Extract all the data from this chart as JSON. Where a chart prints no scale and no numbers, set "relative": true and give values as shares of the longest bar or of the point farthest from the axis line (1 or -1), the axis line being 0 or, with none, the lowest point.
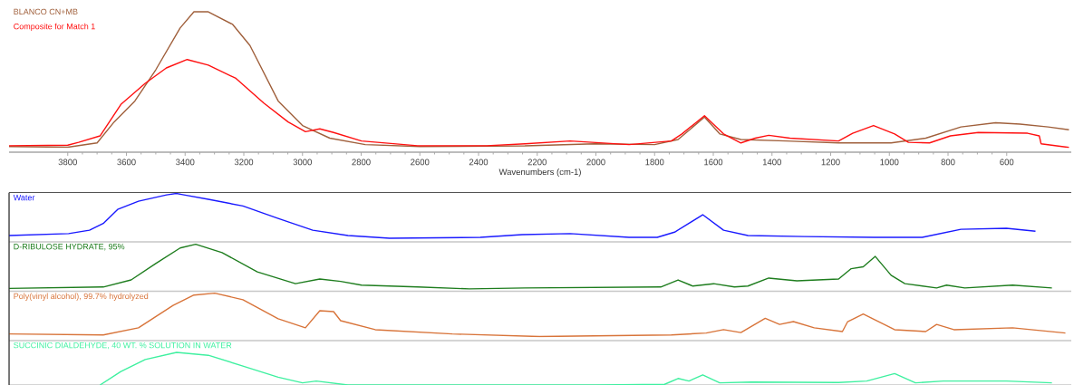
{
  "chart_data": [
    {
      "type": "line",
      "relative": true,
      "xlabel": "Wavenumbers (cm-1)",
      "xlim": [
        4000,
        380
      ],
      "xticks": [
        3800,
        3600,
        3400,
        3200,
        3000,
        2800,
        2600,
        2400,
        2200,
        2000,
        1800,
        1600,
        1400,
        1200,
        1000,
        800,
        600
      ],
      "tick_labels": "x",
      "legend": "top left",
      "series": [
        {
          "name": "BLANCO CN+MB",
          "color": "#a0603c",
          "x": [
            4000,
            3800,
            3700,
            3642,
            3571,
            3500,
            3417,
            3370,
            3321,
            3238,
            3179,
            3083,
            3000,
            2907,
            2786,
            2600,
            2242,
            2004,
            1800,
            1720,
            1630,
            1578,
            1506,
            1352,
            1173,
            994,
            876,
            756,
            638,
            555,
            459,
            388
          ],
          "values": [
            0.04,
            0.035,
            0.066,
            0.215,
            0.365,
            0.587,
            0.885,
            1.0,
            1.0,
            0.91,
            0.76,
            0.365,
            0.19,
            0.1,
            0.054,
            0.04,
            0.045,
            0.06,
            0.054,
            0.09,
            0.25,
            0.13,
            0.09,
            0.08,
            0.066,
            0.066,
            0.1,
            0.18,
            0.21,
            0.2,
            0.18,
            0.16
          ]
        },
        {
          "name": "Composite for Match 1",
          "color": "#ff1010",
          "x": [
            4000,
            3800,
            3763,
            3690,
            3619,
            3536,
            3464,
            3393,
            3321,
            3227,
            3132,
            3049,
            2990,
            2941,
            2894,
            2799,
            2608,
            2372,
            2242,
            2088,
            1887,
            1743,
            1707,
            1630,
            1565,
            1506,
            1457,
            1411,
            1339,
            1173,
            1125,
            1054,
            982,
            935,
            863,
            792,
            697,
            529,
            489,
            483,
            388
          ],
          "values": [
            0.046,
            0.05,
            0.07,
            0.116,
            0.34,
            0.49,
            0.6,
            0.66,
            0.62,
            0.526,
            0.35,
            0.215,
            0.146,
            0.166,
            0.14,
            0.08,
            0.046,
            0.046,
            0.06,
            0.08,
            0.054,
            0.08,
            0.13,
            0.26,
            0.13,
            0.066,
            0.1,
            0.12,
            0.1,
            0.08,
            0.135,
            0.19,
            0.13,
            0.07,
            0.066,
            0.116,
            0.14,
            0.135,
            0.116,
            0.06,
            0.034
          ]
        }
      ]
    },
    {
      "type": "line",
      "relative": true,
      "xlim": [
        4000,
        380
      ],
      "tick_labels": false,
      "legend": "top left",
      "series": [
        {
          "name": "Water",
          "color": "#1a1aff",
          "x": [
            4000,
            3797,
            3726,
            3679,
            3630,
            3559,
            3463,
            3430,
            3404,
            3321,
            3203,
            3083,
            2965,
            2845,
            2703,
            2394,
            2251,
            2088,
            1887,
            1791,
            1732,
            1636,
            1565,
            1482,
            1290,
            1052,
            888,
            756,
            601,
            502
          ],
          "values": [
            0.13,
            0.17,
            0.24,
            0.38,
            0.67,
            0.84,
            0.97,
            1.0,
            0.97,
            0.88,
            0.74,
            0.485,
            0.24,
            0.13,
            0.074,
            0.093,
            0.15,
            0.17,
            0.093,
            0.093,
            0.2,
            0.56,
            0.24,
            0.13,
            0.11,
            0.093,
            0.093,
            0.26,
            0.28,
            0.22
          ]
        }
      ]
    },
    {
      "type": "line",
      "relative": true,
      "xlim": [
        4000,
        380
      ],
      "tick_labels": false,
      "legend": "top left",
      "series": [
        {
          "name": "D-RIBULOSE HYDRATE, 95%",
          "color": "#1e7d1e",
          "x": [
            4000,
            3679,
            3584,
            3500,
            3417,
            3364,
            3274,
            3154,
            3024,
            2941,
            2870,
            2799,
            2608,
            2431,
            2242,
            1779,
            1720,
            1670,
            1599,
            1528,
            1482,
            1411,
            1315,
            1173,
            1130,
            1089,
            1048,
            994,
            947,
            839,
            805,
            743,
            580,
            446
          ],
          "values": [
            0.06,
            0.09,
            0.24,
            0.59,
            0.92,
            1.0,
            0.82,
            0.41,
            0.16,
            0.26,
            0.21,
            0.13,
            0.09,
            0.05,
            0.07,
            0.09,
            0.24,
            0.11,
            0.16,
            0.09,
            0.11,
            0.28,
            0.22,
            0.26,
            0.48,
            0.52,
            0.74,
            0.34,
            0.16,
            0.07,
            0.13,
            0.07,
            0.13,
            0.07
          ]
        }
      ]
    },
    {
      "type": "line",
      "relative": true,
      "xlim": [
        4000,
        380
      ],
      "tick_labels": false,
      "legend": "top left",
      "series": [
        {
          "name": "Poly(vinyl alcohol), 99.7% hydrolyzed",
          "color": "#d8743a",
          "x": [
            4000,
            3679,
            3559,
            3441,
            3370,
            3299,
            3203,
            3083,
            2990,
            2941,
            2894,
            2870,
            2752,
            2490,
            2193,
            2004,
            1743,
            1624,
            1565,
            1506,
            1423,
            1374,
            1327,
            1256,
            1160,
            1142,
            1089,
            982,
            876,
            839,
            780,
            580,
            400
          ],
          "values": [
            0.14,
            0.12,
            0.27,
            0.74,
            0.96,
            1.0,
            0.86,
            0.46,
            0.27,
            0.63,
            0.61,
            0.42,
            0.23,
            0.14,
            0.086,
            0.1,
            0.12,
            0.16,
            0.23,
            0.17,
            0.47,
            0.34,
            0.4,
            0.27,
            0.19,
            0.4,
            0.56,
            0.23,
            0.19,
            0.34,
            0.23,
            0.27,
            0.16
          ]
        }
      ]
    },
    {
      "type": "line",
      "relative": true,
      "xlim": [
        4000,
        380
      ],
      "tick_labels": false,
      "legend": "top left",
      "series": [
        {
          "name": "SUCCINIC DIALDEHYDE, 40 WT. % SOLUTION IN WATER",
          "color": "#3ff0a0",
          "x": [
            3690,
            3619,
            3536,
            3429,
            3321,
            3203,
            3083,
            3000,
            2953,
            2845,
            2242,
            2000,
            1766,
            1720,
            1683,
            1636,
            1578,
            1470,
            1173,
            1077,
            982,
            911,
            816,
            601,
            446
          ],
          "values": [
            0.0,
            0.41,
            0.78,
            1.0,
            0.91,
            0.58,
            0.24,
            0.065,
            0.12,
            0.0,
            0.0,
            0.0,
            0.02,
            0.2,
            0.12,
            0.31,
            0.065,
            0.09,
            0.076,
            0.12,
            0.35,
            0.065,
            0.12,
            0.12,
            0.065
          ]
        }
      ]
    }
  ]
}
